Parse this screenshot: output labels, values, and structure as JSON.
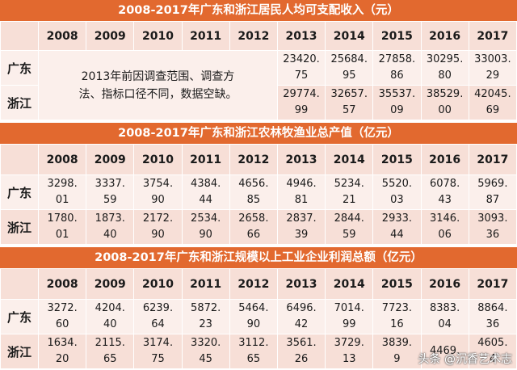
{
  "years": [
    "2008",
    "2009",
    "2010",
    "2011",
    "2012",
    "2013",
    "2014",
    "2015",
    "2016",
    "2017"
  ],
  "sections": [
    {
      "title": "2008-2017年广东和浙江居民人均可支配收入（元）",
      "note": "2013年前因调查范围、调查方法、指标口径不同，数据空缺。",
      "rows": [
        {
          "label": "广东",
          "values": [
            "",
            "",
            "",
            "",
            "",
            "23420.75",
            "25684.95",
            "27858.86",
            "30295.80",
            "33003.29"
          ]
        },
        {
          "label": "浙江",
          "values": [
            "",
            "",
            "",
            "",
            "",
            "29774.99",
            "32657.57",
            "35537.09",
            "38529.00",
            "42045.69"
          ]
        }
      ]
    },
    {
      "title": "2008-2017年广东和浙江农林牧渔业总产值（亿元）",
      "rows": [
        {
          "label": "广东",
          "values": [
            "3298.01",
            "3337.59",
            "3754.90",
            "4384.44",
            "4656.85",
            "4946.81",
            "5234.21",
            "5520.03",
            "6078.43",
            "5969.87"
          ]
        },
        {
          "label": "浙江",
          "values": [
            "1780.01",
            "1873.40",
            "2172.90",
            "2534.90",
            "2658.66",
            "2837.39",
            "2844.59",
            "2933.44",
            "3146.06",
            "3093.36"
          ]
        }
      ]
    },
    {
      "title": "2008-2017年广东和浙江规模以上工业企业利润总额（亿元）",
      "rows": [
        {
          "label": "广东",
          "values": [
            "3272.60",
            "4204.40",
            "6239.64",
            "5872.23",
            "5464.90",
            "6496.42",
            "7014.99",
            "7723.16",
            "8383.04",
            "8864.36"
          ]
        },
        {
          "label": "浙江",
          "values": [
            "1634.20",
            "2115.65",
            "3174.75",
            "3320.45",
            "3112.65",
            "3561.26",
            "3729.13",
            "3839.9",
            "4469.",
            "4605.4"
          ]
        }
      ]
    }
  ],
  "watermark": "头条 @沉香艺术志"
}
